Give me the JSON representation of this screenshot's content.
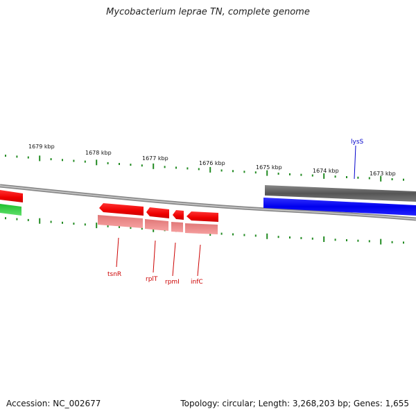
{
  "title": "Mycobacterium leprae TN, complete genome",
  "footer": {
    "accession": "Accession: NC_002677",
    "summary": "Topology: circular; Length: 3,268,203 bp; Genes: 1,655"
  },
  "ruler": {
    "labels": [
      "1679 kbp",
      "1678 kbp",
      "1677 kbp",
      "1676 kbp",
      "1675 kbp",
      "1674 kbp",
      "1673 kbp"
    ],
    "tick_color": "#228B22"
  },
  "genes": {
    "lysS": "lysS",
    "tsnR": "tsnR",
    "rplT": "rplT",
    "rpmI": "rpmI",
    "infC": "infC"
  },
  "colors": {
    "forward_feature": "#0000ff",
    "reverse_feature": "#ff0000",
    "reverse_shadow": "#f28a8a",
    "gene_grey": "#666666",
    "green_feature": "#2ecc40",
    "label_blue": "#0000cc",
    "label_red": "#cc0000"
  }
}
